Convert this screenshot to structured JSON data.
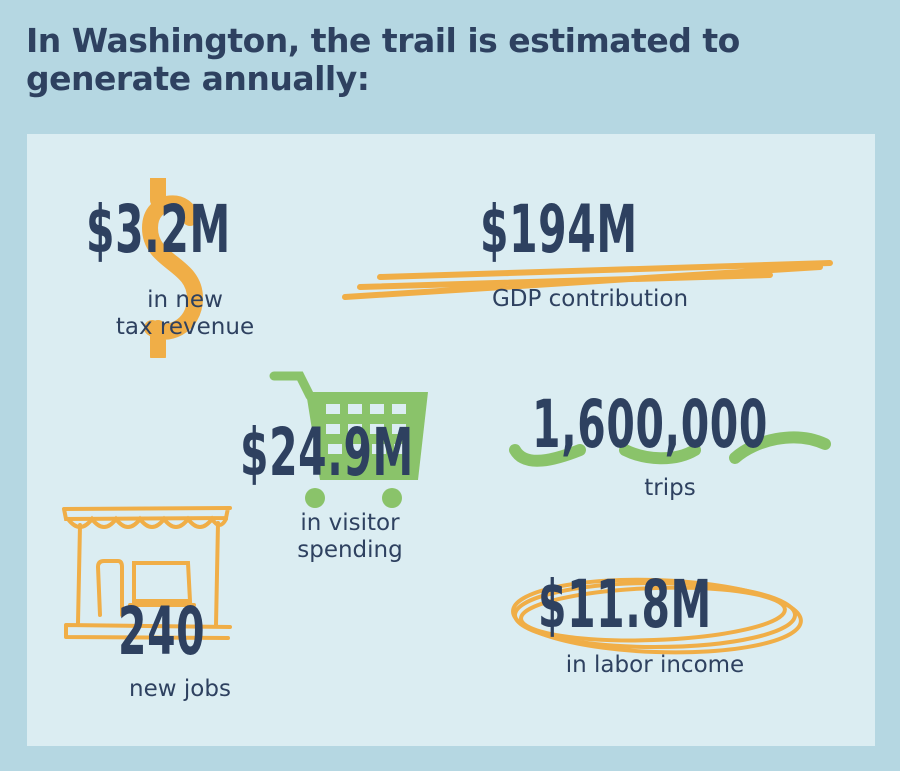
{
  "title": "In Washington, the trail is estimated to generate annually:",
  "colors": {
    "background": "#b5d7e2",
    "panel": "#dbedf2",
    "text": "#2e4160",
    "orange": "#f0ae47",
    "green": "#8ac36a"
  },
  "stats": [
    {
      "value": "$3.2M",
      "label_1": "in new",
      "label_2": "tax revenue",
      "icon": "dollar-sign-icon"
    },
    {
      "value": "$194M",
      "label_1": "GDP contribution",
      "icon": "brush-stroke-underline"
    },
    {
      "value": "$24.9M",
      "label_1": "in visitor",
      "label_2": "spending",
      "icon": "shopping-cart-icon"
    },
    {
      "value": "1,600,000",
      "label_1": "trips",
      "icon": "wavy-line"
    },
    {
      "value": "240",
      "label_1": "new jobs",
      "icon": "storefront-icon"
    },
    {
      "value": "$11.8M",
      "label_1": "in labor income",
      "icon": "scribble-circle"
    }
  ]
}
